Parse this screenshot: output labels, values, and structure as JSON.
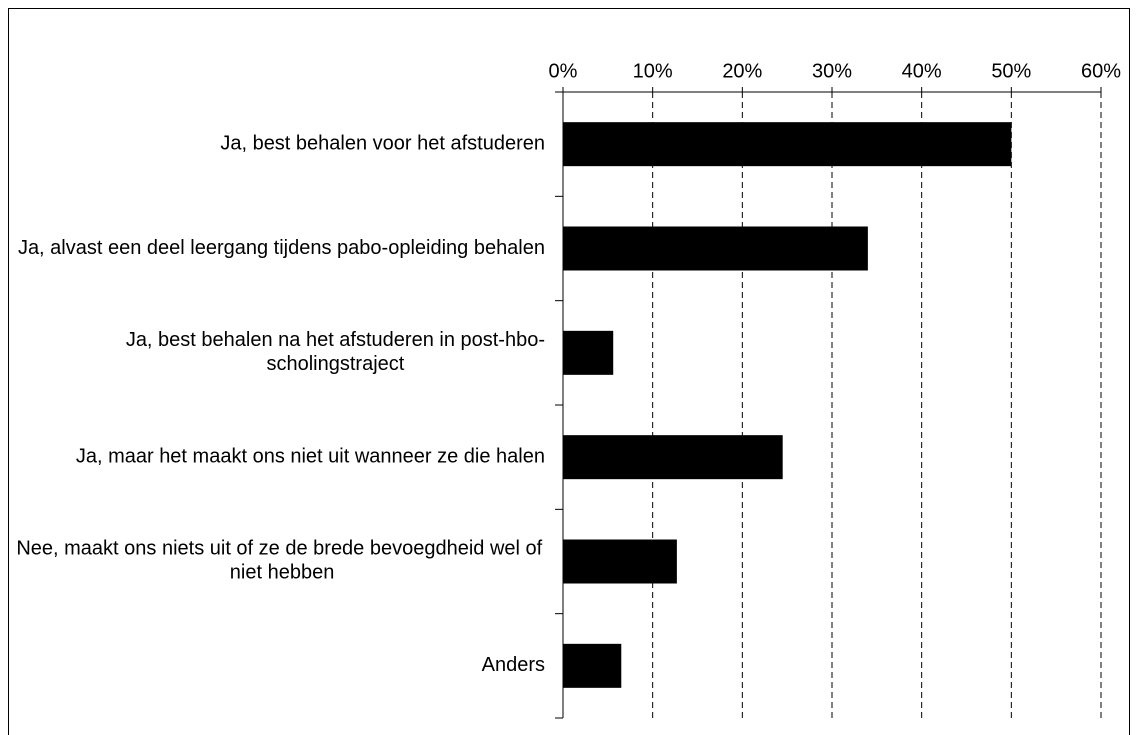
{
  "chart_data": {
    "type": "bar",
    "orientation": "horizontal",
    "categories": [
      "Ja, best behalen voor het afstuderen",
      "Ja, alvast een deel leergang tijdens pabo-opleiding behalen",
      "Ja, best behalen na het afstuderen in post-hbo-scholingstraject",
      "Ja, maar het maakt ons niet uit wanneer ze die halen",
      "Nee, maakt ons niets uit of ze de brede bevoegdheid wel of niet hebben",
      "Anders"
    ],
    "values": [
      50,
      34,
      5.6,
      24.5,
      12.7,
      6.5
    ],
    "color": "#000000",
    "xlim": [
      0,
      60
    ],
    "xticks": [
      {
        "value": 0,
        "label": "0%"
      },
      {
        "value": 10,
        "label": "10%"
      },
      {
        "value": 20,
        "label": "20%"
      },
      {
        "value": 30,
        "label": "30%"
      },
      {
        "value": 40,
        "label": "40%"
      },
      {
        "value": 50,
        "label": "50%"
      },
      {
        "value": 60,
        "label": "60%"
      }
    ],
    "grid": true
  }
}
